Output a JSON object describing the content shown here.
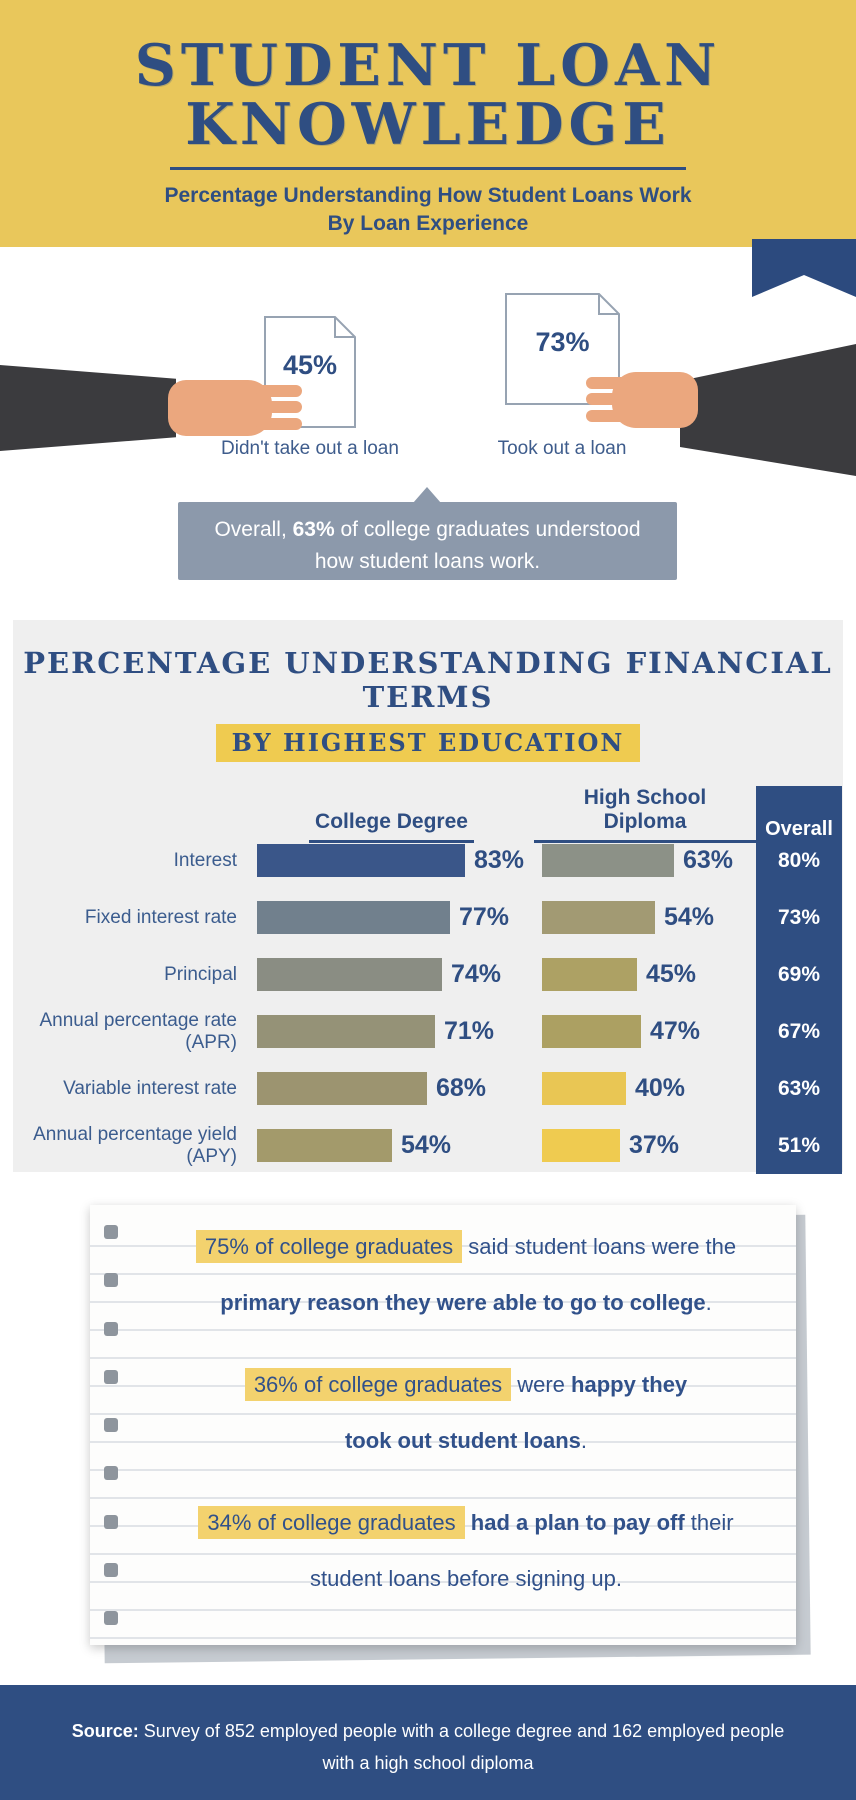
{
  "colors": {
    "header_yellow": "#E9C75B",
    "navy": "#2F4E82",
    "banner_gray": "#8C99AB",
    "chart_bg": "#EFEFEF",
    "highlight_yellow": "#EFCB50",
    "notebook_highlight": "#F3D26E"
  },
  "header": {
    "title_line1": "STUDENT LOAN",
    "title_line2": "KNOWLEDGE",
    "subtitle_line1": "Percentage Understanding How Student Loans Work",
    "subtitle_line2": "By Loan Experience"
  },
  "loan_experience": {
    "left": {
      "value": "45%",
      "label": "Didn't take out a loan"
    },
    "right": {
      "value": "73%",
      "label": "Took out a loan"
    },
    "overall": {
      "prefix": "Overall, ",
      "bold": "63%",
      "suffix": " of college graduates understood",
      "line2": "how student loans work."
    }
  },
  "chart": {
    "title": "PERCENTAGE UNDERSTANDING FINANCIAL TERMS",
    "subtitle": "BY HIGHEST EDUCATION",
    "columns": {
      "college": "College Degree",
      "hs": "High School Diploma",
      "overall": "Overall"
    },
    "rows": [
      {
        "label": "Interest",
        "college": 83,
        "college_color": "#3A5689",
        "hs": 63,
        "hs_color": "#8C9187",
        "overall": 80
      },
      {
        "label": "Fixed interest rate",
        "college": 77,
        "college_color": "#71808D",
        "hs": 54,
        "hs_color": "#A29A73",
        "overall": 73
      },
      {
        "label": "Principal",
        "college": 74,
        "college_color": "#8A8D83",
        "hs": 45,
        "hs_color": "#ADA164",
        "overall": 69
      },
      {
        "label": "Annual percentage rate (APR)",
        "college": 71,
        "college_color": "#959277",
        "hs": 47,
        "hs_color": "#ACA062",
        "overall": 67
      },
      {
        "label": "Variable interest rate",
        "college": 68,
        "college_color": "#9C9470",
        "hs": 40,
        "hs_color": "#E9C654",
        "overall": 63
      },
      {
        "label": "Annual percentage yield (APY)",
        "college": 54,
        "college_color": "#A39A6B",
        "hs": 37,
        "hs_color": "#EFCB50",
        "overall": 51
      }
    ]
  },
  "chart_data": {
    "type": "bar",
    "title": "PERCENTAGE UNDERSTANDING FINANCIAL TERMS",
    "subtitle": "BY HIGHEST EDUCATION",
    "categories": [
      "Interest",
      "Fixed interest rate",
      "Principal",
      "Annual percentage rate (APR)",
      "Variable interest rate",
      "Annual percentage yield (APY)"
    ],
    "series": [
      {
        "name": "College Degree",
        "values": [
          83,
          77,
          74,
          71,
          68,
          54
        ]
      },
      {
        "name": "High School Diploma",
        "values": [
          63,
          54,
          45,
          47,
          40,
          37
        ]
      },
      {
        "name": "Overall",
        "values": [
          80,
          73,
          69,
          67,
          63,
          51
        ]
      }
    ],
    "unit": "%",
    "xlim": [
      0,
      100
    ],
    "secondary": {
      "type": "pictogram",
      "categories": [
        "Didn't take out a loan",
        "Took out a loan"
      ],
      "values": [
        45,
        73
      ],
      "overall_note": "Overall, 63% of college graduates understood how student loans work."
    }
  },
  "notebook": {
    "fact1": {
      "highlight": "75% of college graduates",
      "normal": " said student loans were the",
      "line2_bold": "primary reason they were able to go to college",
      "line2_end": "."
    },
    "fact2": {
      "highlight": "36% of college graduates",
      "normal": " were ",
      "bold": "happy they",
      "line2_bold": "took out student loans",
      "line2_end": "."
    },
    "fact3": {
      "highlight": "34% of college graduates",
      "bold": " had a plan to pay off",
      "normal": " their",
      "line2": "student loans before signing up."
    }
  },
  "footer": {
    "source_label": "Source:",
    "line1_rest": " Survey of 852 employed people with a college degree and 162 employed people",
    "line2": "with a high school diploma"
  }
}
